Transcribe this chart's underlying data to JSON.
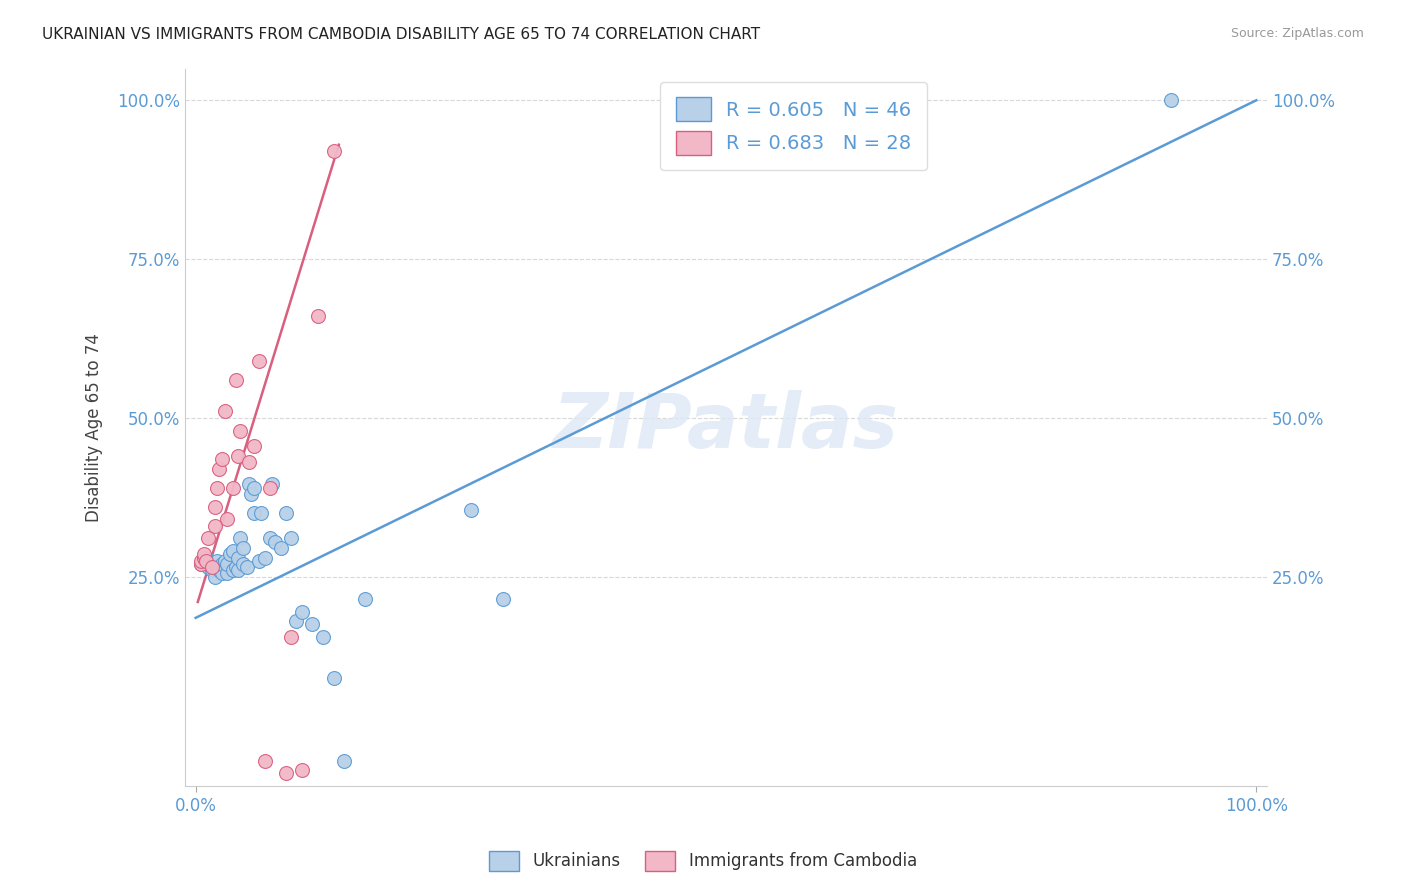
{
  "title": "UKRAINIAN VS IMMIGRANTS FROM CAMBODIA DISABILITY AGE 65 TO 74 CORRELATION CHART",
  "source": "Source: ZipAtlas.com",
  "ylabel": "Disability Age 65 to 74",
  "watermark": "ZIPatlas",
  "legend_blue_r": "R = 0.605",
  "legend_blue_n": "N = 46",
  "legend_pink_r": "R = 0.683",
  "legend_pink_n": "N = 28",
  "legend_label_blue": "Ukrainians",
  "legend_label_pink": "Immigrants from Cambodia",
  "blue_color": "#b8d0e8",
  "pink_color": "#f2b8c8",
  "blue_line_color": "#5b9bd5",
  "pink_line_color": "#d95f7f",
  "axis_color": "#5b9bd5",
  "xmin": -0.01,
  "xmax": 1.01,
  "ymin": -0.08,
  "ymax": 1.05,
  "blue_scatter_x": [
    0.005,
    0.01,
    0.012,
    0.015,
    0.018,
    0.02,
    0.02,
    0.022,
    0.025,
    0.025,
    0.028,
    0.03,
    0.03,
    0.032,
    0.035,
    0.035,
    0.038,
    0.04,
    0.04,
    0.042,
    0.045,
    0.045,
    0.048,
    0.05,
    0.052,
    0.055,
    0.055,
    0.06,
    0.062,
    0.065,
    0.07,
    0.072,
    0.075,
    0.08,
    0.085,
    0.09,
    0.095,
    0.1,
    0.11,
    0.12,
    0.13,
    0.14,
    0.16,
    0.26,
    0.29,
    0.92
  ],
  "blue_scatter_y": [
    0.27,
    0.28,
    0.265,
    0.26,
    0.25,
    0.265,
    0.275,
    0.26,
    0.255,
    0.27,
    0.275,
    0.255,
    0.27,
    0.285,
    0.26,
    0.29,
    0.265,
    0.26,
    0.28,
    0.31,
    0.27,
    0.295,
    0.265,
    0.395,
    0.38,
    0.35,
    0.39,
    0.275,
    0.35,
    0.28,
    0.31,
    0.395,
    0.305,
    0.295,
    0.35,
    0.31,
    0.18,
    0.195,
    0.175,
    0.155,
    0.09,
    -0.04,
    0.215,
    0.355,
    0.215,
    1.0
  ],
  "pink_scatter_x": [
    0.005,
    0.005,
    0.008,
    0.008,
    0.01,
    0.012,
    0.015,
    0.018,
    0.018,
    0.02,
    0.022,
    0.025,
    0.028,
    0.03,
    0.035,
    0.038,
    0.04,
    0.042,
    0.05,
    0.055,
    0.06,
    0.065,
    0.07,
    0.085,
    0.09,
    0.1,
    0.115,
    0.13
  ],
  "pink_scatter_y": [
    0.27,
    0.275,
    0.28,
    0.285,
    0.275,
    0.31,
    0.265,
    0.33,
    0.36,
    0.39,
    0.42,
    0.435,
    0.51,
    0.34,
    0.39,
    0.56,
    0.44,
    0.48,
    0.43,
    0.455,
    0.59,
    -0.04,
    0.39,
    -0.06,
    0.155,
    -0.055,
    0.66,
    0.92
  ],
  "blue_trend_x": [
    0.0,
    1.0
  ],
  "blue_trend_y": [
    0.185,
    1.0
  ],
  "pink_trend_x": [
    0.002,
    0.135
  ],
  "pink_trend_y": [
    0.21,
    0.93
  ],
  "xtick_positions": [
    0.0,
    1.0
  ],
  "xtick_labels": [
    "0.0%",
    "100.0%"
  ],
  "ytick_positions": [
    0.25,
    0.5,
    0.75,
    1.0
  ],
  "ytick_labels": [
    "25.0%",
    "50.0%",
    "75.0%",
    "100.0%"
  ],
  "background_color": "#ffffff",
  "grid_color": "#d8d8d8"
}
